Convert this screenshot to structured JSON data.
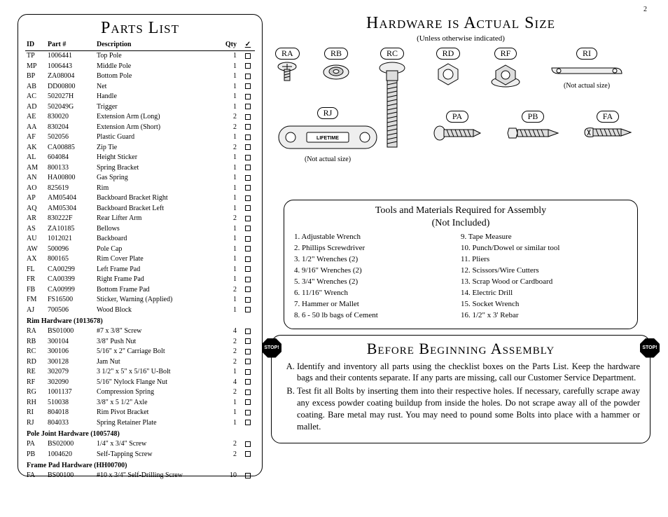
{
  "page_number": "2",
  "parts_list": {
    "title": "Parts List",
    "headers": {
      "id": "ID",
      "part": "Part #",
      "desc": "Description",
      "qty": "Qty",
      "chk": "✓"
    },
    "rows": [
      {
        "id": "TP",
        "part": "1006441",
        "desc": "Top Pole",
        "qty": "1"
      },
      {
        "id": "MP",
        "part": "1006443",
        "desc": "Middle Pole",
        "qty": "1"
      },
      {
        "id": "BP",
        "part": "ZA08004",
        "desc": "Bottom Pole",
        "qty": "1"
      },
      {
        "id": "AB",
        "part": "DD00800",
        "desc": "Net",
        "qty": "1"
      },
      {
        "id": "AC",
        "part": "502027H",
        "desc": "Handle",
        "qty": "1"
      },
      {
        "id": "AD",
        "part": "502049G",
        "desc": "Trigger",
        "qty": "1"
      },
      {
        "id": "AE",
        "part": "830020",
        "desc": "Extension Arm (Long)",
        "qty": "2"
      },
      {
        "id": "AA",
        "part": "830204",
        "desc": "Extension Arm (Short)",
        "qty": "2"
      },
      {
        "id": "AF",
        "part": "502056",
        "desc": "Plastic Guard",
        "qty": "1"
      },
      {
        "id": "AK",
        "part": "CA00885",
        "desc": "Zip Tie",
        "qty": "2"
      },
      {
        "id": "AL",
        "part": "604084",
        "desc": "Height Sticker",
        "qty": "1"
      },
      {
        "id": "AM",
        "part": "800133",
        "desc": "Spring Bracket",
        "qty": "1"
      },
      {
        "id": "AN",
        "part": "HA00800",
        "desc": "Gas Spring",
        "qty": "1"
      },
      {
        "id": "AO",
        "part": "825619",
        "desc": "Rim",
        "qty": "1"
      },
      {
        "id": "AP",
        "part": "AM05404",
        "desc": "Backboard Bracket Right",
        "qty": "1"
      },
      {
        "id": "AQ",
        "part": "AM05304",
        "desc": "Backboard Bracket Left",
        "qty": "1"
      },
      {
        "id": "AR",
        "part": "830222F",
        "desc": "Rear Lifter Arm",
        "qty": "2"
      },
      {
        "id": "AS",
        "part": "ZA10185",
        "desc": "Bellows",
        "qty": "1"
      },
      {
        "id": "AU",
        "part": "1012021",
        "desc": "Backboard",
        "qty": "1"
      },
      {
        "id": "AW",
        "part": "500096",
        "desc": "Pole Cap",
        "qty": "1"
      },
      {
        "id": "AX",
        "part": "800165",
        "desc": "Rim Cover Plate",
        "qty": "1"
      },
      {
        "id": "FL",
        "part": "CA00299",
        "desc": "Left Frame Pad",
        "qty": "1"
      },
      {
        "id": "FR",
        "part": "CA00399",
        "desc": "Right Frame Pad",
        "qty": "1"
      },
      {
        "id": "FB",
        "part": "CA00999",
        "desc": "Bottom Frame Pad",
        "qty": "2"
      },
      {
        "id": "FM",
        "part": "FS16500",
        "desc": "Sticker, Warning (Applied)",
        "qty": "1"
      },
      {
        "id": "AJ",
        "part": "700506",
        "desc": "Wood Block",
        "qty": "1"
      }
    ],
    "sections": [
      {
        "title": "Rim Hardware (1013678)",
        "rows": [
          {
            "id": "RA",
            "part": "BS01000",
            "desc": "#7 x 3/8\" Screw",
            "qty": "4"
          },
          {
            "id": "RB",
            "part": "300104",
            "desc": "3/8\" Push Nut",
            "qty": "2"
          },
          {
            "id": "RC",
            "part": "300106",
            "desc": "5/16\" x 2\" Carriage Bolt",
            "qty": "2"
          },
          {
            "id": "RD",
            "part": "300128",
            "desc": "Jam Nut",
            "qty": "2"
          },
          {
            "id": "RE",
            "part": "302079",
            "desc": "3 1/2\" x 5\" x 5/16\" U-Bolt",
            "qty": "1"
          },
          {
            "id": "RF",
            "part": "302090",
            "desc": "5/16\" Nylock Flange Nut",
            "qty": "4"
          },
          {
            "id": "RG",
            "part": "1001137",
            "desc": "Compression Spring",
            "qty": "2"
          },
          {
            "id": "RH",
            "part": "510038",
            "desc": "3/8\" x 5 1/2\" Axle",
            "qty": "1"
          },
          {
            "id": "RI",
            "part": "804018",
            "desc": "Rim Pivot Bracket",
            "qty": "1"
          },
          {
            "id": "RJ",
            "part": "804033",
            "desc": "Spring Retainer Plate",
            "qty": "1"
          }
        ]
      },
      {
        "title": "Pole Joint Hardware (1005748)",
        "rows": [
          {
            "id": "PA",
            "part": "BS02000",
            "desc": "1/4\" x 3/4\" Screw",
            "qty": "2"
          },
          {
            "id": "PB",
            "part": "1004620",
            "desc": "Self-Tapping Screw",
            "qty": "2"
          }
        ]
      },
      {
        "title": "Frame Pad Hardware (HH00700)",
        "rows": [
          {
            "id": "FA",
            "part": "BS00100",
            "desc": "#10 x 3/4\" Self-Drilling Screw",
            "qty": "10"
          }
        ]
      }
    ]
  },
  "hardware": {
    "title": "Hardware is Actual Size",
    "subtitle": "(Unless otherwise indicated)",
    "not_actual": "(Not actual size)",
    "labels": {
      "RA": "RA",
      "RB": "RB",
      "RC": "RC",
      "RD": "RD",
      "RF": "RF",
      "RI": "RI",
      "RJ": "RJ",
      "PA": "PA",
      "PB": "PB",
      "FA": "FA"
    }
  },
  "tools": {
    "title1": "Tools and Materials Required for Assembly",
    "title2": "(Not Included)",
    "col1": [
      "1.  Adjustable Wrench",
      "2.  Phillips Screwdriver",
      "3.  1/2\" Wrenches (2)",
      "4.  9/16\" Wrenches (2)",
      "5.  3/4\" Wrenches (2)",
      "6.  11/16\" Wrench",
      "7.  Hammer or Mallet",
      "8.  6 - 50 lb bags of Cement"
    ],
    "col2": [
      "9.  Tape Measure",
      "10. Punch/Dowel or similar tool",
      "11. Pliers",
      "12. Scissors/Wire Cutters",
      "13. Scrap Wood or Cardboard",
      "14. Electric Drill",
      "15. Socket Wrench",
      "16. 1/2\" x 3' Rebar"
    ]
  },
  "assembly": {
    "stop": "STOP!",
    "title": "Before Beginning Assembly",
    "items": [
      "Identify and inventory all parts using the checklist boxes on the Parts List. Keep the hardware bags and their contents separate. If any parts are missing, call our Customer Service Department.",
      "Test fit all Bolts by inserting them into their respective holes. If necessary, carefully scrape away any excess powder coating buildup from inside the holes. Do not scrape away all of the powder coating. Bare metal may rust. You may need to pound some Bolts into place with a hammer or mallet."
    ]
  }
}
